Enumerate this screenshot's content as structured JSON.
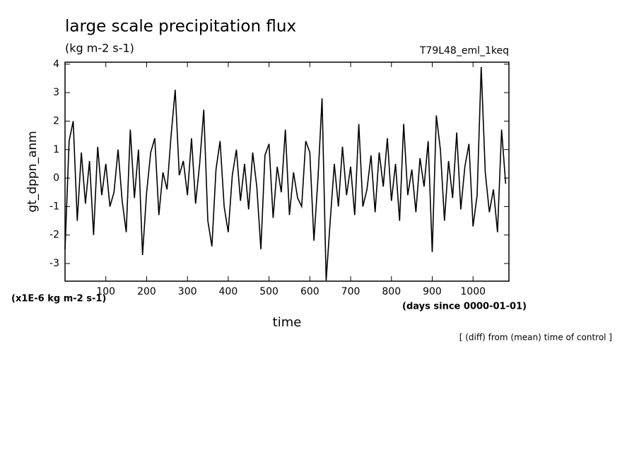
{
  "chart_data": {
    "type": "line",
    "title": "large scale precipitation flux",
    "subtitle": "(kg m-2 s-1)",
    "run_label": "T79L48_eml_1keq",
    "y_label": "gt_dppn_anm",
    "y_scale_label": "(x1E-6 kg m-2 s-1)",
    "x_label": "time",
    "x_units_label": "(days since 0000-01-01)",
    "footnote": "[ (diff) from (mean) time of control ]",
    "color": "#000000",
    "xlim": [
      0,
      1088
    ],
    "xticks": [
      100,
      200,
      300,
      400,
      500,
      600,
      700,
      800,
      900,
      1000
    ],
    "ylim": [
      -3.62,
      4.07
    ],
    "yticks": [
      -3,
      -2,
      -1,
      0,
      1,
      2,
      3,
      4
    ],
    "x": [
      0,
      10,
      20,
      30,
      40,
      50,
      60,
      70,
      80,
      90,
      100,
      110,
      120,
      130,
      140,
      150,
      160,
      170,
      180,
      190,
      200,
      210,
      220,
      230,
      240,
      250,
      260,
      270,
      280,
      290,
      300,
      310,
      320,
      330,
      340,
      350,
      360,
      370,
      380,
      390,
      400,
      410,
      420,
      430,
      440,
      450,
      460,
      470,
      480,
      490,
      500,
      510,
      520,
      530,
      540,
      550,
      560,
      570,
      580,
      590,
      600,
      610,
      620,
      630,
      640,
      650,
      660,
      670,
      680,
      690,
      700,
      710,
      720,
      730,
      740,
      750,
      760,
      770,
      780,
      790,
      800,
      810,
      820,
      830,
      840,
      850,
      860,
      870,
      880,
      890,
      900,
      910,
      920,
      930,
      940,
      950,
      960,
      970,
      980,
      990,
      1000,
      1010,
      1020,
      1030,
      1040,
      1050,
      1060,
      1070,
      1080
    ],
    "values": [
      -2.5,
      1.3,
      2.0,
      -1.5,
      0.9,
      -0.9,
      0.6,
      -2.0,
      1.1,
      -0.6,
      0.5,
      -1.0,
      -0.5,
      1.0,
      -0.8,
      -1.9,
      1.7,
      -0.7,
      1.0,
      -2.7,
      -0.5,
      0.9,
      1.4,
      -1.3,
      0.2,
      -0.4,
      1.5,
      3.1,
      0.1,
      0.6,
      -0.6,
      1.4,
      -0.9,
      0.5,
      2.4,
      -1.5,
      -2.4,
      0.3,
      1.3,
      -1.0,
      -1.9,
      0.1,
      1.0,
      -0.8,
      0.5,
      -1.1,
      0.9,
      -0.3,
      -2.5,
      0.8,
      1.2,
      -1.4,
      0.4,
      -0.5,
      1.7,
      -1.3,
      0.2,
      -0.7,
      -1.0,
      1.3,
      0.9,
      -2.2,
      0.0,
      2.8,
      -3.6,
      -1.5,
      0.5,
      -1.0,
      1.1,
      -0.6,
      0.4,
      -1.3,
      1.9,
      -1.0,
      -0.4,
      0.8,
      -1.2,
      0.9,
      -0.3,
      1.4,
      -0.8,
      0.5,
      -1.5,
      1.9,
      -0.6,
      0.3,
      -1.2,
      0.7,
      -0.3,
      1.3,
      -2.6,
      2.2,
      1.0,
      -1.5,
      0.6,
      -0.7,
      1.6,
      -1.1,
      0.4,
      1.2,
      -1.7,
      -0.6,
      3.9,
      0.2,
      -1.2,
      -0.4,
      -1.9,
      1.7,
      -0.2
    ]
  }
}
